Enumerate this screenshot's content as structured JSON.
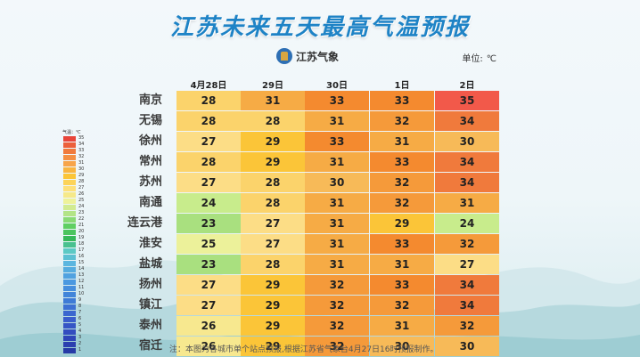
{
  "title": "江苏未来五天最高气温预报",
  "brand": "江苏气象",
  "unit": {
    "label": "单位:",
    "value": "℃"
  },
  "days": [
    "4月28日",
    "29日",
    "30日",
    "1日",
    "2日"
  ],
  "cities": [
    {
      "name": "南京",
      "temps": [
        28,
        31,
        33,
        33,
        35
      ]
    },
    {
      "name": "无锡",
      "temps": [
        28,
        28,
        31,
        32,
        34
      ]
    },
    {
      "name": "徐州",
      "temps": [
        27,
        29,
        33,
        31,
        30
      ]
    },
    {
      "name": "常州",
      "temps": [
        28,
        29,
        31,
        33,
        34
      ]
    },
    {
      "name": "苏州",
      "temps": [
        27,
        28,
        30,
        32,
        34
      ]
    },
    {
      "name": "南通",
      "temps": [
        24,
        28,
        31,
        32,
        31
      ]
    },
    {
      "name": "连云港",
      "temps": [
        23,
        27,
        31,
        29,
        24
      ]
    },
    {
      "name": "淮安",
      "temps": [
        25,
        27,
        31,
        33,
        32
      ]
    },
    {
      "name": "盐城",
      "temps": [
        23,
        28,
        31,
        31,
        27
      ]
    },
    {
      "name": "扬州",
      "temps": [
        27,
        29,
        32,
        33,
        34
      ]
    },
    {
      "name": "镇江",
      "temps": [
        27,
        29,
        32,
        32,
        34
      ]
    },
    {
      "name": "泰州",
      "temps": [
        26,
        29,
        32,
        31,
        32
      ]
    },
    {
      "name": "宿迁",
      "temps": [
        26,
        29,
        32,
        30,
        30
      ]
    }
  ],
  "legend": {
    "title": "气温：℃",
    "ticks": [
      35,
      34,
      33,
      32,
      31,
      30,
      29,
      28,
      27,
      26,
      25,
      24,
      23,
      22,
      21,
      20,
      19,
      18,
      17,
      16,
      15,
      14,
      13,
      12,
      11,
      10,
      9,
      8,
      7,
      6,
      5,
      4,
      3,
      2,
      1
    ]
  },
  "note": "注：本图为各城市单个站点预报,根据江苏省气象台4月27日16时预报制作。",
  "colors": {
    "title": "#1e83c6",
    "t35": "#f2594a",
    "t34": "#f07a3c",
    "t33": "#f48a2f",
    "t32": "#f59a3a",
    "t31": "#f6ab45",
    "t30": "#f7ba58",
    "t29": "#fbc538",
    "t28": "#fbd36b",
    "t27": "#fcdd86",
    "t26": "#f7e88f",
    "t25": "#ecf19a",
    "t24": "#c8ec8c",
    "t23": "#a9e07f"
  }
}
